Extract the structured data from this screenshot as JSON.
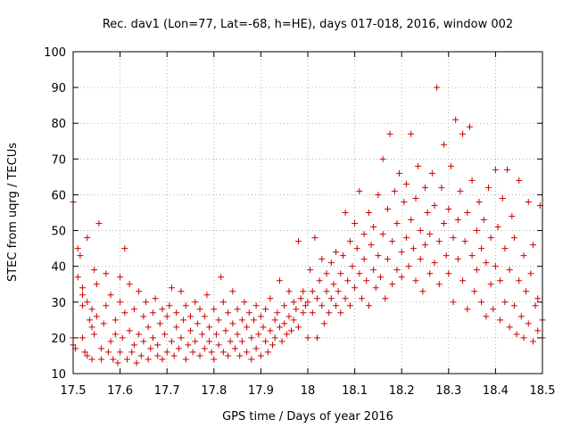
{
  "chart_data": {
    "type": "scatter",
    "title": "Rec. dav1 (Lon=77, Lat=-68, h=HE), days 017-018, 2016, window 002",
    "xlabel": "GPS time / Days of year 2016",
    "ylabel": "STEC from uqrg / TECUs",
    "xlim": [
      17.5,
      18.5
    ],
    "ylim": [
      10,
      100
    ],
    "xticks": [
      "17.5",
      "17.6",
      "17.7",
      "17.8",
      "17.9",
      "18",
      "18.1",
      "18.2",
      "18.3",
      "18.4",
      "18.5"
    ],
    "yticks": [
      "10",
      "20",
      "30",
      "40",
      "50",
      "60",
      "70",
      "80",
      "90",
      "100"
    ],
    "grid": true,
    "marker": "plus",
    "color": "#cc0000",
    "points": [
      [
        17.5,
        58
      ],
      [
        17.5,
        18
      ],
      [
        17.5,
        20
      ],
      [
        17.505,
        17
      ],
      [
        17.51,
        37
      ],
      [
        17.51,
        45
      ],
      [
        17.515,
        43
      ],
      [
        17.52,
        34
      ],
      [
        17.52,
        32
      ],
      [
        17.52,
        29
      ],
      [
        17.52,
        20
      ],
      [
        17.525,
        16
      ],
      [
        17.53,
        30
      ],
      [
        17.53,
        48
      ],
      [
        17.53,
        15
      ],
      [
        17.535,
        25
      ],
      [
        17.54,
        23
      ],
      [
        17.54,
        28
      ],
      [
        17.54,
        14
      ],
      [
        17.545,
        39
      ],
      [
        17.545,
        21
      ],
      [
        17.55,
        35
      ],
      [
        17.55,
        26
      ],
      [
        17.555,
        52
      ],
      [
        17.56,
        17
      ],
      [
        17.56,
        14
      ],
      [
        17.565,
        24
      ],
      [
        17.57,
        38
      ],
      [
        17.57,
        29
      ],
      [
        17.575,
        16
      ],
      [
        17.58,
        19
      ],
      [
        17.58,
        32
      ],
      [
        17.585,
        14
      ],
      [
        17.59,
        21
      ],
      [
        17.59,
        25
      ],
      [
        17.595,
        13
      ],
      [
        17.6,
        37
      ],
      [
        17.6,
        30
      ],
      [
        17.6,
        16
      ],
      [
        17.605,
        20
      ],
      [
        17.61,
        45
      ],
      [
        17.61,
        27
      ],
      [
        17.615,
        14
      ],
      [
        17.62,
        22
      ],
      [
        17.62,
        35
      ],
      [
        17.625,
        16
      ],
      [
        17.63,
        18
      ],
      [
        17.63,
        28
      ],
      [
        17.635,
        13
      ],
      [
        17.64,
        33
      ],
      [
        17.64,
        21
      ],
      [
        17.645,
        15
      ],
      [
        17.65,
        26
      ],
      [
        17.65,
        19
      ],
      [
        17.655,
        30
      ],
      [
        17.66,
        14
      ],
      [
        17.66,
        23
      ],
      [
        17.665,
        17
      ],
      [
        17.67,
        27
      ],
      [
        17.67,
        20
      ],
      [
        17.675,
        31
      ],
      [
        17.68,
        15
      ],
      [
        17.68,
        18
      ],
      [
        17.685,
        24
      ],
      [
        17.69,
        28
      ],
      [
        17.69,
        14
      ],
      [
        17.695,
        21
      ],
      [
        17.7,
        26
      ],
      [
        17.7,
        16
      ],
      [
        17.705,
        29
      ],
      [
        17.71,
        19
      ],
      [
        17.71,
        34
      ],
      [
        17.715,
        15
      ],
      [
        17.72,
        23
      ],
      [
        17.72,
        27
      ],
      [
        17.725,
        17
      ],
      [
        17.73,
        33
      ],
      [
        17.73,
        20
      ],
      [
        17.735,
        25
      ],
      [
        17.74,
        14
      ],
      [
        17.74,
        29
      ],
      [
        17.745,
        18
      ],
      [
        17.75,
        22
      ],
      [
        17.75,
        26
      ],
      [
        17.755,
        16
      ],
      [
        17.76,
        30
      ],
      [
        17.76,
        19
      ],
      [
        17.765,
        24
      ],
      [
        17.77,
        15
      ],
      [
        17.77,
        28
      ],
      [
        17.775,
        21
      ],
      [
        17.78,
        17
      ],
      [
        17.78,
        26
      ],
      [
        17.785,
        32
      ],
      [
        17.79,
        19
      ],
      [
        17.79,
        23
      ],
      [
        17.795,
        16
      ],
      [
        17.8,
        28
      ],
      [
        17.8,
        14
      ],
      [
        17.805,
        21
      ],
      [
        17.81,
        25
      ],
      [
        17.81,
        18
      ],
      [
        17.815,
        37
      ],
      [
        17.82,
        30
      ],
      [
        17.82,
        16
      ],
      [
        17.825,
        22
      ],
      [
        17.83,
        27
      ],
      [
        17.83,
        15
      ],
      [
        17.835,
        19
      ],
      [
        17.84,
        24
      ],
      [
        17.84,
        33
      ],
      [
        17.845,
        17
      ],
      [
        17.85,
        21
      ],
      [
        17.85,
        28
      ],
      [
        17.855,
        15
      ],
      [
        17.86,
        25
      ],
      [
        17.86,
        19
      ],
      [
        17.865,
        30
      ],
      [
        17.87,
        16
      ],
      [
        17.87,
        23
      ],
      [
        17.875,
        27
      ],
      [
        17.88,
        14
      ],
      [
        17.88,
        20
      ],
      [
        17.885,
        25
      ],
      [
        17.89,
        17
      ],
      [
        17.89,
        29
      ],
      [
        17.895,
        21
      ],
      [
        17.9,
        26
      ],
      [
        17.9,
        15
      ],
      [
        17.905,
        23
      ],
      [
        17.91,
        19
      ],
      [
        17.91,
        28
      ],
      [
        17.915,
        16
      ],
      [
        17.92,
        22
      ],
      [
        17.92,
        31
      ],
      [
        17.925,
        18
      ],
      [
        17.93,
        25
      ],
      [
        17.93,
        20
      ],
      [
        17.935,
        27
      ],
      [
        17.94,
        23
      ],
      [
        17.94,
        36
      ],
      [
        17.945,
        19
      ],
      [
        17.95,
        29
      ],
      [
        17.95,
        24
      ],
      [
        17.955,
        21
      ],
      [
        17.96,
        33
      ],
      [
        17.96,
        26
      ],
      [
        17.965,
        22
      ],
      [
        17.97,
        30
      ],
      [
        17.97,
        25
      ],
      [
        17.975,
        28
      ],
      [
        17.98,
        47
      ],
      [
        17.98,
        23
      ],
      [
        17.985,
        31
      ],
      [
        17.99,
        27
      ],
      [
        17.99,
        33
      ],
      [
        17.995,
        29
      ],
      [
        18.0,
        30
      ],
      [
        18.0,
        20
      ],
      [
        18.005,
        39
      ],
      [
        18.01,
        33
      ],
      [
        18.01,
        27
      ],
      [
        18.015,
        48
      ],
      [
        18.02,
        31
      ],
      [
        18.02,
        20
      ],
      [
        18.025,
        36
      ],
      [
        18.03,
        29
      ],
      [
        18.03,
        42
      ],
      [
        18.035,
        24
      ],
      [
        18.04,
        33
      ],
      [
        18.04,
        38
      ],
      [
        18.045,
        27
      ],
      [
        18.05,
        41
      ],
      [
        18.05,
        31
      ],
      [
        18.055,
        35
      ],
      [
        18.06,
        29
      ],
      [
        18.06,
        44
      ],
      [
        18.065,
        33
      ],
      [
        18.07,
        38
      ],
      [
        18.07,
        27
      ],
      [
        18.075,
        43
      ],
      [
        18.08,
        31
      ],
      [
        18.08,
        55
      ],
      [
        18.085,
        36
      ],
      [
        18.09,
        47
      ],
      [
        18.09,
        29
      ],
      [
        18.095,
        40
      ],
      [
        18.1,
        52
      ],
      [
        18.1,
        34
      ],
      [
        18.105,
        45
      ],
      [
        18.11,
        61
      ],
      [
        18.11,
        38
      ],
      [
        18.115,
        31
      ],
      [
        18.12,
        49
      ],
      [
        18.12,
        42
      ],
      [
        18.125,
        36
      ],
      [
        18.13,
        55
      ],
      [
        18.13,
        29
      ],
      [
        18.135,
        46
      ],
      [
        18.14,
        39
      ],
      [
        18.14,
        51
      ],
      [
        18.145,
        34
      ],
      [
        18.15,
        60
      ],
      [
        18.15,
        43
      ],
      [
        18.155,
        37
      ],
      [
        18.16,
        49
      ],
      [
        18.16,
        70
      ],
      [
        18.165,
        31
      ],
      [
        18.17,
        56
      ],
      [
        18.17,
        42
      ],
      [
        18.175,
        77
      ],
      [
        18.18,
        47
      ],
      [
        18.18,
        35
      ],
      [
        18.185,
        61
      ],
      [
        18.19,
        39
      ],
      [
        18.19,
        52
      ],
      [
        18.195,
        66
      ],
      [
        18.2,
        44
      ],
      [
        18.2,
        37
      ],
      [
        18.205,
        58
      ],
      [
        18.21,
        48
      ],
      [
        18.21,
        63
      ],
      [
        18.215,
        40
      ],
      [
        18.22,
        77
      ],
      [
        18.22,
        53
      ],
      [
        18.225,
        45
      ],
      [
        18.23,
        36
      ],
      [
        18.23,
        59
      ],
      [
        18.235,
        68
      ],
      [
        18.24,
        42
      ],
      [
        18.24,
        50
      ],
      [
        18.245,
        33
      ],
      [
        18.25,
        62
      ],
      [
        18.25,
        46
      ],
      [
        18.255,
        55
      ],
      [
        18.26,
        38
      ],
      [
        18.26,
        49
      ],
      [
        18.265,
        66
      ],
      [
        18.27,
        41
      ],
      [
        18.27,
        57
      ],
      [
        18.275,
        90
      ],
      [
        18.28,
        47
      ],
      [
        18.28,
        35
      ],
      [
        18.285,
        62
      ],
      [
        18.29,
        52
      ],
      [
        18.29,
        74
      ],
      [
        18.295,
        43
      ],
      [
        18.3,
        56
      ],
      [
        18.3,
        38
      ],
      [
        18.305,
        68
      ],
      [
        18.31,
        48
      ],
      [
        18.31,
        30
      ],
      [
        18.315,
        81
      ],
      [
        18.32,
        53
      ],
      [
        18.32,
        42
      ],
      [
        18.325,
        61
      ],
      [
        18.33,
        77
      ],
      [
        18.33,
        36
      ],
      [
        18.335,
        47
      ],
      [
        18.34,
        55
      ],
      [
        18.34,
        28
      ],
      [
        18.345,
        79
      ],
      [
        18.35,
        43
      ],
      [
        18.35,
        64
      ],
      [
        18.355,
        33
      ],
      [
        18.36,
        50
      ],
      [
        18.36,
        39
      ],
      [
        18.365,
        58
      ],
      [
        18.37,
        30
      ],
      [
        18.37,
        45
      ],
      [
        18.375,
        53
      ],
      [
        18.38,
        26
      ],
      [
        18.38,
        41
      ],
      [
        18.385,
        62
      ],
      [
        18.39,
        35
      ],
      [
        18.39,
        48
      ],
      [
        18.395,
        28
      ],
      [
        18.4,
        67
      ],
      [
        18.4,
        40
      ],
      [
        18.405,
        51
      ],
      [
        18.41,
        25
      ],
      [
        18.41,
        36
      ],
      [
        18.415,
        59
      ],
      [
        18.42,
        30
      ],
      [
        18.42,
        45
      ],
      [
        18.425,
        67
      ],
      [
        18.43,
        23
      ],
      [
        18.43,
        39
      ],
      [
        18.435,
        54
      ],
      [
        18.44,
        29
      ],
      [
        18.44,
        48
      ],
      [
        18.445,
        21
      ],
      [
        18.45,
        36
      ],
      [
        18.45,
        64
      ],
      [
        18.455,
        26
      ],
      [
        18.46,
        43
      ],
      [
        18.46,
        20
      ],
      [
        18.465,
        33
      ],
      [
        18.47,
        58
      ],
      [
        18.47,
        24
      ],
      [
        18.475,
        38
      ],
      [
        18.48,
        19
      ],
      [
        18.48,
        46
      ],
      [
        18.485,
        29
      ],
      [
        18.49,
        22
      ],
      [
        18.49,
        31
      ],
      [
        18.495,
        57
      ],
      [
        18.5,
        20
      ],
      [
        18.5,
        25
      ]
    ]
  }
}
